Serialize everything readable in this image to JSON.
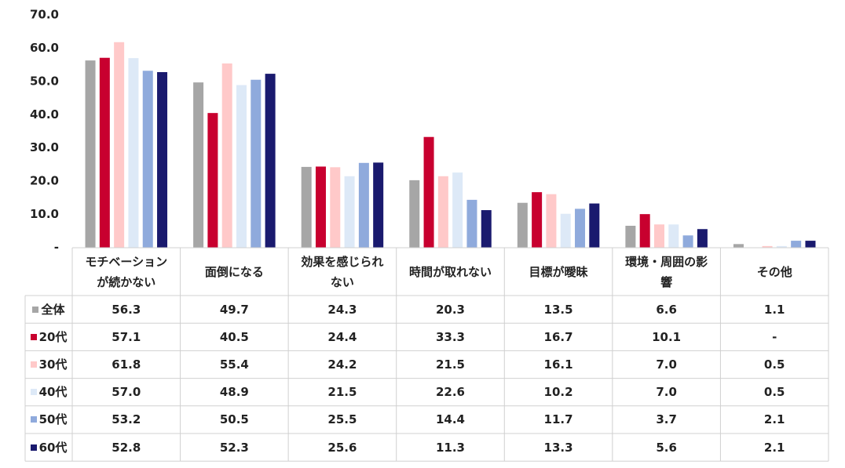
{
  "chart_data": {
    "type": "bar",
    "categories": [
      "モチベーションが続かない",
      "面倒になる",
      "効果を感じられない",
      "時間が取れない",
      "目標が曖昧",
      "環境・周囲の影響",
      "その他"
    ],
    "series": [
      {
        "name": "全体",
        "color": "#a6a6a6",
        "values": [
          56.3,
          49.7,
          24.3,
          20.3,
          13.5,
          6.6,
          1.1
        ],
        "value_labels": [
          "56.3",
          "49.7",
          "24.3",
          "20.3",
          "13.5",
          "6.6",
          "1.1"
        ]
      },
      {
        "name": "20代",
        "color": "#c8002f",
        "values": [
          57.1,
          40.5,
          24.4,
          33.3,
          16.7,
          10.1,
          0
        ],
        "value_labels": [
          "57.1",
          "40.5",
          "24.4",
          "33.3",
          "16.7",
          "10.1",
          "-"
        ]
      },
      {
        "name": "30代",
        "color": "#ffc9c9",
        "values": [
          61.8,
          55.4,
          24.2,
          21.5,
          16.1,
          7.0,
          0.5
        ],
        "value_labels": [
          "61.8",
          "55.4",
          "24.2",
          "21.5",
          "16.1",
          "7.0",
          "0.5"
        ]
      },
      {
        "name": "40代",
        "color": "#dde9f7",
        "values": [
          57.0,
          48.9,
          21.5,
          22.6,
          10.2,
          7.0,
          0.5
        ],
        "value_labels": [
          "57.0",
          "48.9",
          "21.5",
          "22.6",
          "10.2",
          "7.0",
          "0.5"
        ]
      },
      {
        "name": "50代",
        "color": "#8faadc",
        "values": [
          53.2,
          50.5,
          25.5,
          14.4,
          11.7,
          3.7,
          2.1
        ],
        "value_labels": [
          "53.2",
          "50.5",
          "25.5",
          "14.4",
          "11.7",
          "3.7",
          "2.1"
        ]
      },
      {
        "name": "60代",
        "color": "#1a1a6e",
        "values": [
          52.8,
          52.3,
          25.6,
          11.3,
          13.3,
          5.6,
          2.1
        ],
        "value_labels": [
          "52.8",
          "52.3",
          "25.6",
          "11.3",
          "13.3",
          "5.6",
          "2.1"
        ]
      }
    ],
    "ylim": [
      0,
      70
    ],
    "yticks": [
      {
        "value": 0,
        "label": "-"
      },
      {
        "value": 10,
        "label": "10.0"
      },
      {
        "value": 20,
        "label": "20.0"
      },
      {
        "value": 30,
        "label": "30.0"
      },
      {
        "value": 40,
        "label": "40.0"
      },
      {
        "value": 50,
        "label": "50.0"
      },
      {
        "value": 60,
        "label": "60.0"
      },
      {
        "value": 70,
        "label": "70.0"
      }
    ],
    "grid": false
  }
}
